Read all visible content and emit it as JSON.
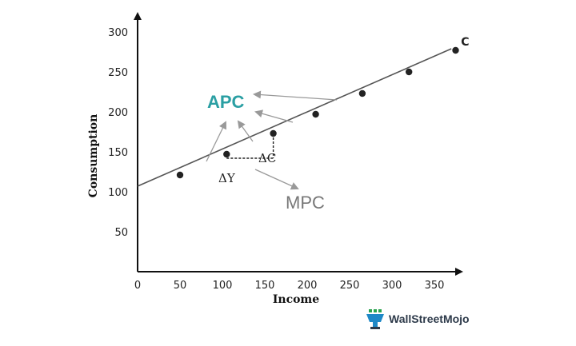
{
  "chart_data": {
    "type": "line",
    "xlabel": "Income",
    "ylabel": "Consumption",
    "xlim": [
      0,
      390
    ],
    "ylim": [
      0,
      330
    ],
    "x_ticks": [
      "0",
      "50",
      "100",
      "150",
      "200",
      "250",
      "300",
      "350"
    ],
    "y_ticks": [
      "50",
      "100",
      "150",
      "200",
      "250",
      "300"
    ],
    "line": {
      "label": "C",
      "x": [
        0,
        370
      ],
      "y": [
        107,
        279
      ]
    },
    "points": {
      "x": [
        50,
        105,
        160,
        210,
        265,
        320,
        375
      ],
      "y": [
        121,
        147,
        173,
        197,
        223,
        250,
        277
      ]
    },
    "annotations": {
      "apc": "APC",
      "mpc": "MPC",
      "delta_c": "ΔC",
      "delta_y": "ΔY"
    },
    "grid": false
  },
  "branding": {
    "logo_text": "WallStreetMojo",
    "logo_icon": "wsm-logo-icon"
  }
}
